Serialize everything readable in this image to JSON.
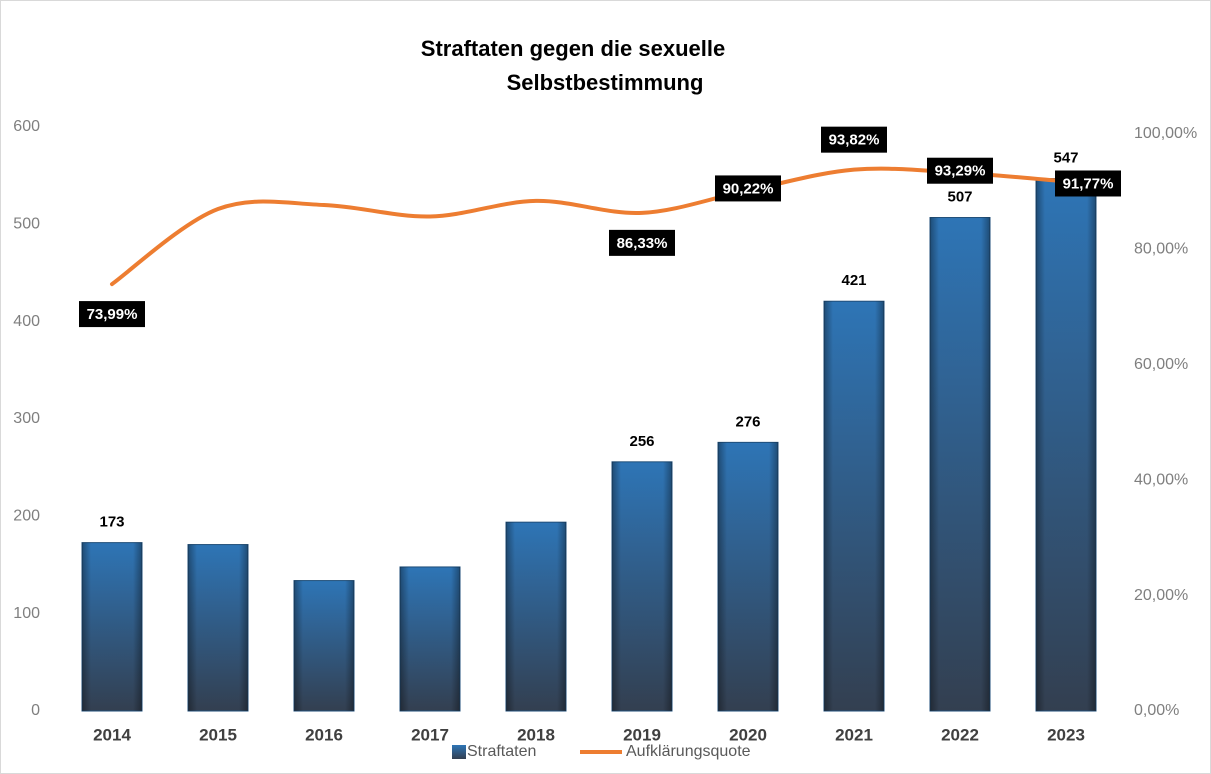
{
  "chart_data": {
    "type": "bar_line",
    "title": [
      "Straftaten gegen die sexuelle",
      "Selbstbestimmung"
    ],
    "categories": [
      "2014",
      "2015",
      "2016",
      "2017",
      "2018",
      "2019",
      "2020",
      "2021",
      "2022",
      "2023"
    ],
    "series": [
      {
        "name": "Straftaten",
        "type": "bar",
        "color": "#2e75b6",
        "values": [
          173,
          171,
          134,
          148,
          194,
          256,
          276,
          421,
          507,
          547
        ],
        "value_labels": [
          "173",
          null,
          null,
          null,
          null,
          "256",
          "276",
          "421",
          "507",
          "547"
        ]
      },
      {
        "name": "Aufklärungsquote",
        "type": "line",
        "axis": "y2",
        "color": "#ed7d31",
        "values": [
          73.99,
          87.0,
          87.7,
          85.7,
          88.4,
          86.33,
          90.22,
          93.82,
          93.29,
          91.77
        ],
        "value_labels": [
          "73,99%",
          null,
          null,
          null,
          null,
          "86,33%",
          "90,22%",
          "93,82%",
          "93,29%",
          "91,77%"
        ]
      }
    ],
    "ylim": [
      0,
      600
    ],
    "yticks": [
      0,
      100,
      200,
      300,
      400,
      500,
      600
    ],
    "y2lim": [
      0,
      100
    ],
    "y2ticks": [
      {
        "value": 0,
        "label": "0,00%"
      },
      {
        "value": 20,
        "label": "20,00%"
      },
      {
        "value": 40,
        "label": "40,00%"
      },
      {
        "value": 60,
        "label": "60,00%"
      },
      {
        "value": 80,
        "label": "80,00%"
      },
      {
        "value": 100,
        "label": "100,00%"
      }
    ],
    "legend": "bottom"
  }
}
